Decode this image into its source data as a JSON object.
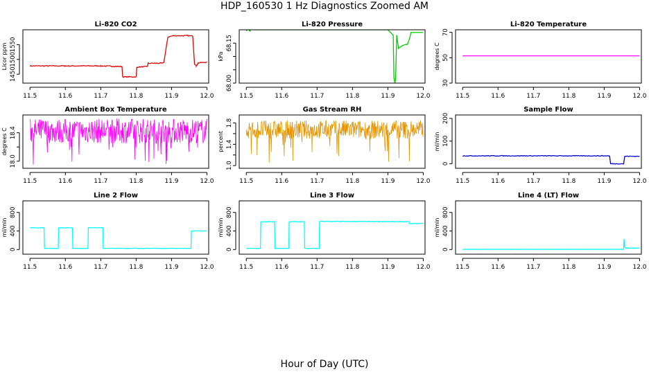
{
  "title": "HDP_160530  1 Hz Diagnostics Zoomed AM",
  "xlabel": "Hour of Day (UTC)",
  "chart_data": [
    {
      "type": "line",
      "title": "Li-820 CO2",
      "ylabel": "Licor ppm",
      "color": "#e00000",
      "xticks": [
        "11.5",
        "11.6",
        "11.7",
        "11.8",
        "11.9",
        "12.0"
      ],
      "xlim": [
        11.48,
        12.005
      ],
      "ylim": [
        1420,
        1600
      ],
      "yticks": [
        1450,
        1500,
        1550
      ],
      "noise": 1.5,
      "x": [
        11.5,
        11.6,
        11.7,
        11.76,
        11.762,
        11.8,
        11.802,
        11.832,
        11.834,
        11.875,
        11.878,
        11.885,
        11.89,
        11.905,
        11.945,
        11.96,
        11.962,
        11.965,
        11.97,
        11.975,
        12.0
      ],
      "y": [
        1478,
        1478,
        1478,
        1476,
        1441,
        1441,
        1474,
        1476,
        1487,
        1487,
        1490,
        1540,
        1576,
        1580,
        1580,
        1579,
        1540,
        1485,
        1478,
        1488,
        1491
      ]
    },
    {
      "type": "line",
      "title": "Li-820 Pressure",
      "ylabel": "kPa",
      "color": "#00cc00",
      "xticks": [
        "11.5",
        "11.6",
        "11.7",
        "11.8",
        "11.9",
        "12.0"
      ],
      "xlim": [
        11.48,
        12.005
      ],
      "ylim": [
        68.0,
        68.2
      ],
      "yticks": [
        68.0,
        68.05,
        68.1,
        68.15
      ],
      "yticklabels": [
        "68.00",
        "",
        "",
        "68.15"
      ],
      "noise": 0,
      "x": [
        11.5,
        11.505,
        11.51,
        11.515,
        11.52,
        11.9,
        11.915,
        11.917,
        11.92,
        11.922,
        11.925,
        11.93,
        11.94,
        11.95,
        11.955,
        11.962,
        11.965,
        11.97,
        12.0
      ],
      "y": [
        68.195,
        68.205,
        68.195,
        68.205,
        68.2,
        68.2,
        68.18,
        68.02,
        68.0,
        68.02,
        68.18,
        68.13,
        68.14,
        68.145,
        68.145,
        68.17,
        68.19,
        68.19,
        68.19
      ]
    },
    {
      "type": "line",
      "title": "Li-820 Temperature",
      "ylabel": "degrees C",
      "color": "#ff00ff",
      "xticks": [
        "11.5",
        "11.6",
        "11.7",
        "11.8",
        "11.9",
        "12.0"
      ],
      "xlim": [
        11.48,
        12.005
      ],
      "ylim": [
        30,
        72
      ],
      "yticks": [
        30,
        50,
        70
      ],
      "noise": 0,
      "x": [
        11.5,
        12.0
      ],
      "y": [
        51.5,
        51.5
      ]
    },
    {
      "type": "line",
      "title": "Ambient Box Temperature",
      "ylabel": "degrees C",
      "color": "#ff00ff",
      "xticks": [
        "11.5",
        "11.6",
        "11.7",
        "11.8",
        "11.9",
        "12.0"
      ],
      "xlim": [
        11.48,
        12.005
      ],
      "ylim": [
        17.9,
        18.65
      ],
      "yticks": [
        18.0,
        18.2,
        18.4
      ],
      "yticklabels": [
        "18.0",
        "",
        "18.4"
      ],
      "noise": 0,
      "band": [
        18.25,
        18.6
      ],
      "spikes_low": [
        17.95,
        18.2
      ],
      "x": [
        11.5,
        12.0
      ],
      "y": [
        18.4,
        18.4
      ]
    },
    {
      "type": "line",
      "title": "Gas Stream RH",
      "ylabel": "percent",
      "color": "#e59400",
      "xticks": [
        "11.5",
        "11.6",
        "11.7",
        "11.8",
        "11.9",
        "12.0"
      ],
      "xlim": [
        11.48,
        12.005
      ],
      "ylim": [
        0.95,
        1.95
      ],
      "yticks": [
        1.0,
        1.2,
        1.4,
        1.6,
        1.8
      ],
      "yticklabels": [
        "1.0",
        "",
        "1.4",
        "",
        "1.8"
      ],
      "noise": 0,
      "band": [
        1.5,
        1.85
      ],
      "spikes_low": [
        1.0,
        1.45
      ],
      "x": [
        11.5,
        12.0
      ],
      "y": [
        1.65,
        1.65
      ]
    },
    {
      "type": "line",
      "title": "Sample Flow",
      "ylabel": "ml/min",
      "color": "#0000cc",
      "xticks": [
        "11.5",
        "11.6",
        "11.7",
        "11.8",
        "11.9",
        "12.0"
      ],
      "xlim": [
        11.48,
        12.005
      ],
      "ylim": [
        -20,
        215
      ],
      "yticks": [
        0,
        100,
        200
      ],
      "noise": 1.5,
      "x": [
        11.5,
        11.915,
        11.918,
        11.955,
        11.958,
        12.0
      ],
      "y": [
        35,
        35,
        0,
        0,
        33,
        33
      ]
    },
    {
      "type": "line",
      "title": "Line 2 Flow",
      "ylabel": "ml/min",
      "color": "#00ffff",
      "xticks": [
        "11.5",
        "11.6",
        "11.7",
        "11.8",
        "11.9",
        "12.0"
      ],
      "xlim": [
        11.48,
        12.005
      ],
      "ylim": [
        -100,
        1050
      ],
      "yticks": [
        0,
        400,
        800
      ],
      "noise": 4,
      "x": [
        11.5,
        11.54,
        11.541,
        11.58,
        11.581,
        11.62,
        11.621,
        11.664,
        11.665,
        11.706,
        11.707,
        11.955,
        11.956,
        12.0
      ],
      "y": [
        470,
        470,
        25,
        25,
        470,
        470,
        25,
        25,
        470,
        470,
        25,
        25,
        400,
        400
      ]
    },
    {
      "type": "line",
      "title": "Line 3 Flow",
      "ylabel": "ml/min",
      "color": "#00ffff",
      "xticks": [
        "11.5",
        "11.6",
        "11.7",
        "11.8",
        "11.9",
        "12.0"
      ],
      "xlim": [
        11.48,
        12.005
      ],
      "ylim": [
        -100,
        1050
      ],
      "yticks": [
        0,
        400,
        800
      ],
      "noise": 6,
      "x": [
        11.5,
        11.54,
        11.541,
        11.58,
        11.581,
        11.62,
        11.621,
        11.664,
        11.665,
        11.706,
        11.707,
        11.96,
        11.961,
        12.0
      ],
      "y": [
        25,
        25,
        600,
        600,
        25,
        25,
        600,
        600,
        25,
        25,
        610,
        600,
        560,
        560
      ]
    },
    {
      "type": "line",
      "title": "Line 4 (LT) Flow",
      "ylabel": "ml/min",
      "color": "#00ffff",
      "xticks": [
        "11.5",
        "11.6",
        "11.7",
        "11.8",
        "11.9",
        "12.0"
      ],
      "xlim": [
        11.48,
        12.005
      ],
      "ylim": [
        -100,
        1050
      ],
      "yticks": [
        0,
        400,
        800
      ],
      "noise": 1.5,
      "x": [
        11.5,
        11.955,
        11.956,
        11.958,
        11.96,
        11.962,
        12.0
      ],
      "y": [
        5,
        5,
        230,
        60,
        40,
        30,
        30
      ]
    }
  ]
}
